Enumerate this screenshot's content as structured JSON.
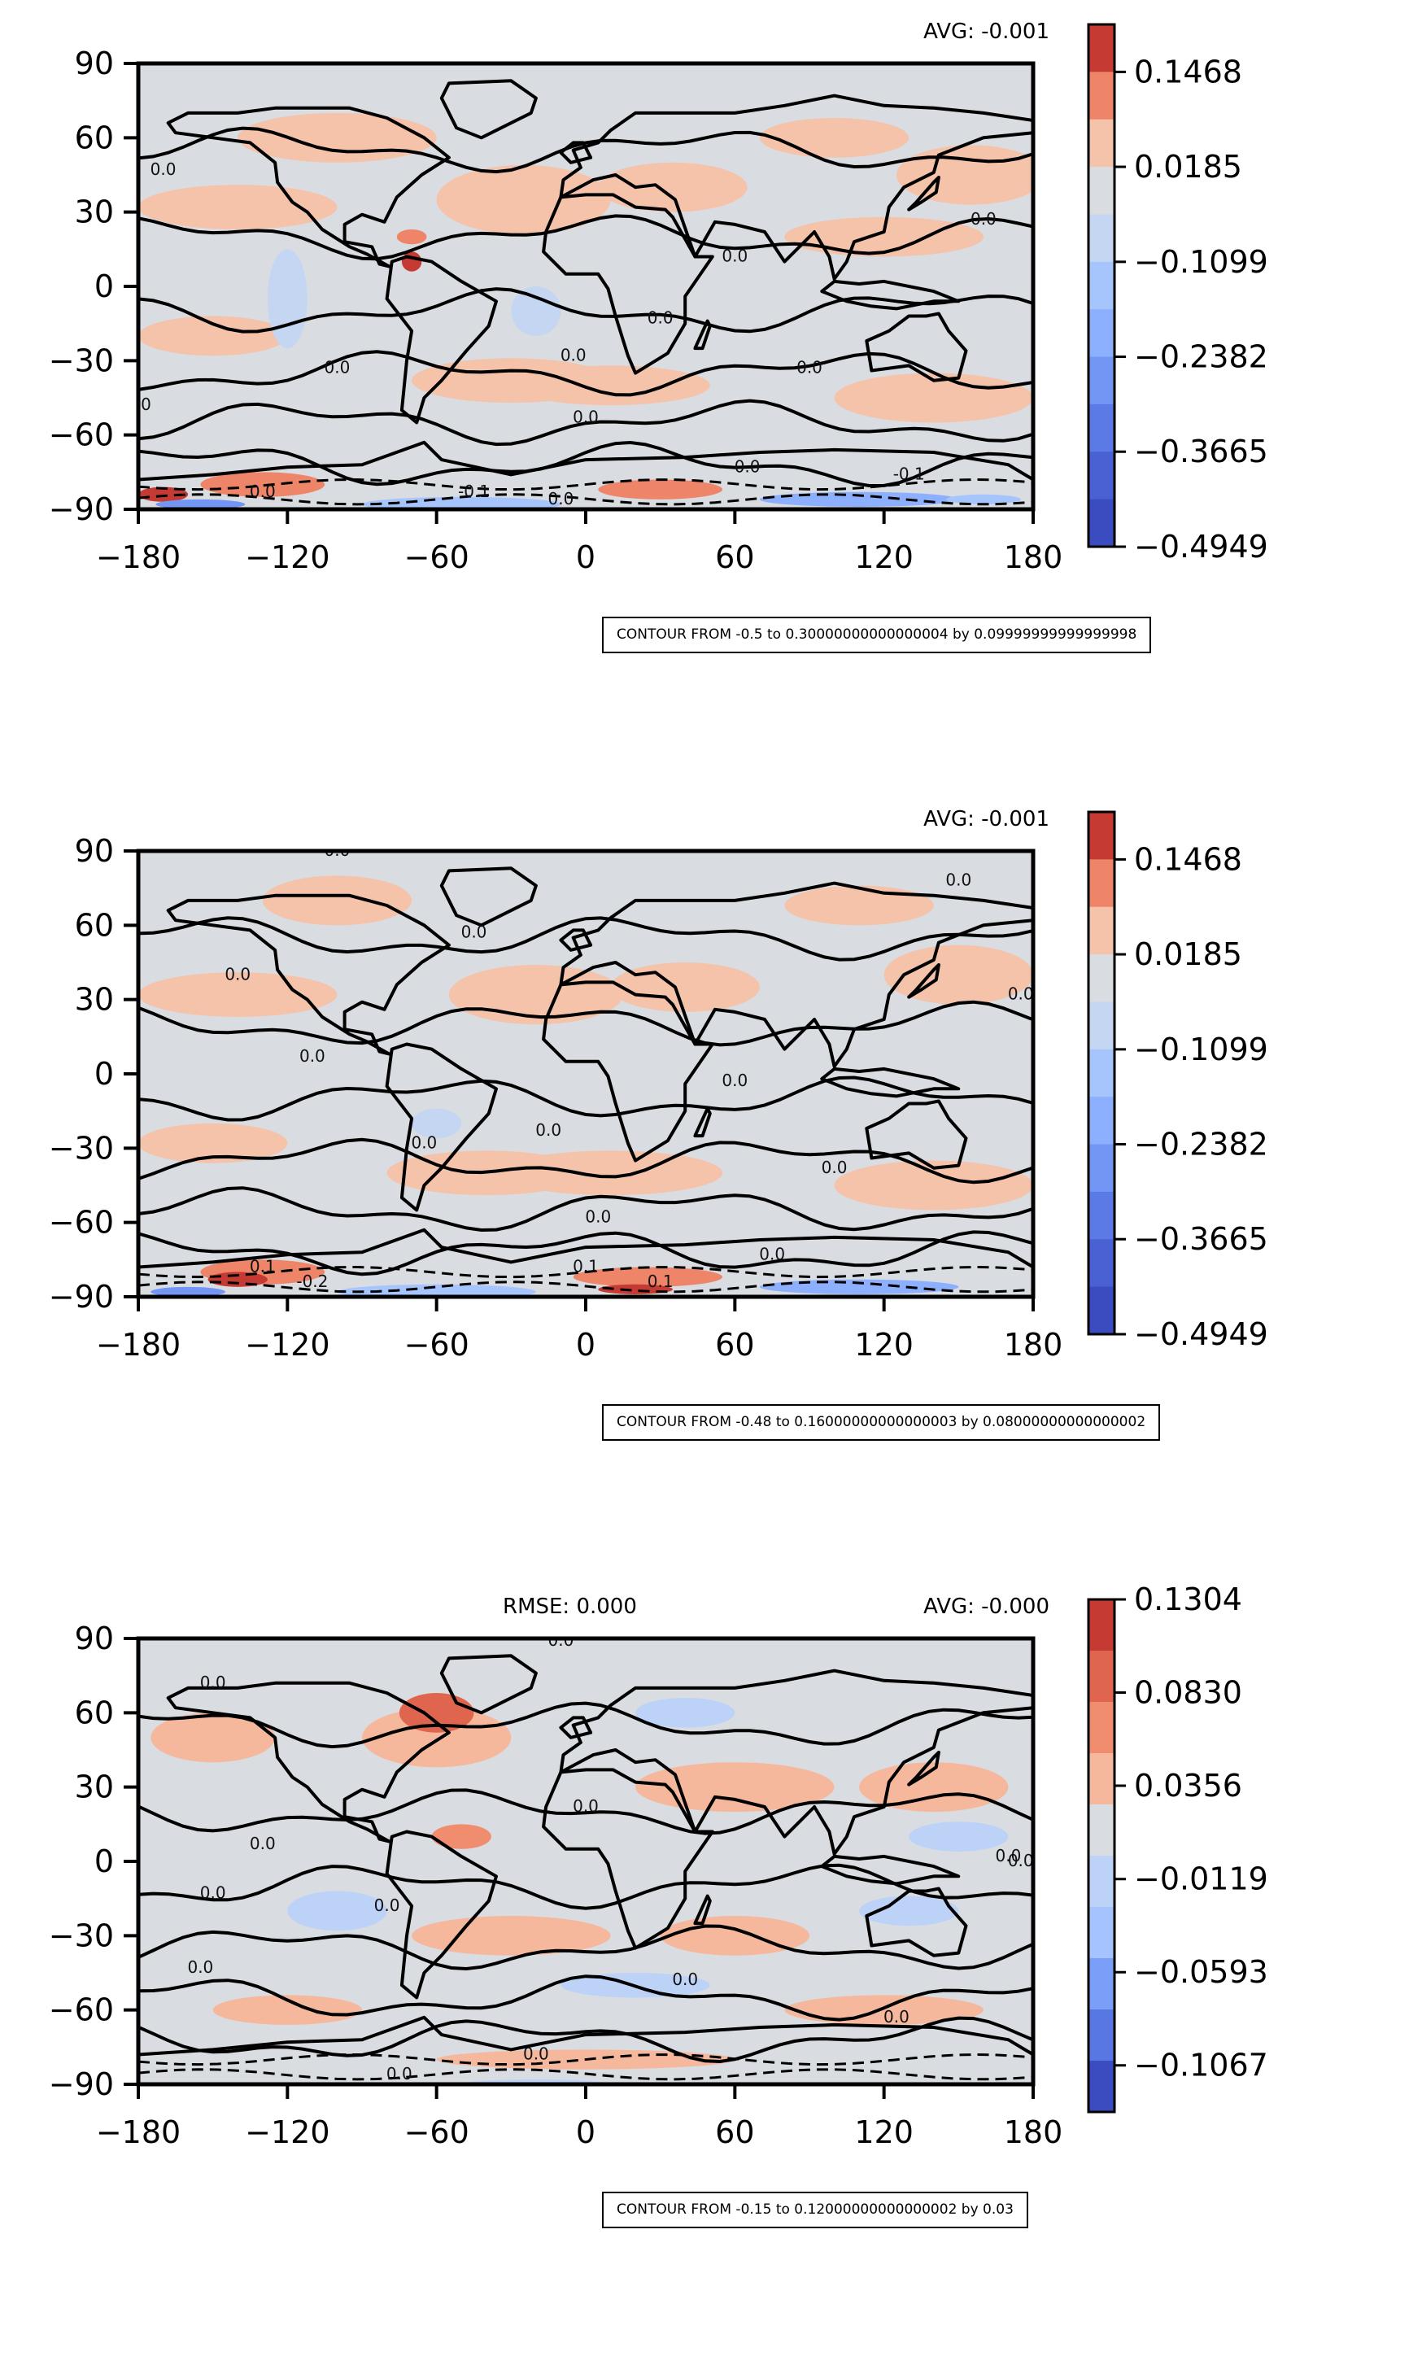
{
  "chart_data": [
    {
      "type": "heatmap",
      "title": "",
      "stats": {
        "avg": "AVG: -0.001",
        "rmse": ""
      },
      "xlabel": "",
      "ylabel": "",
      "xlim": [
        -180,
        180
      ],
      "ylim": [
        -90,
        90
      ],
      "x_ticks": [
        "−180",
        "−120",
        "−60",
        "0",
        "60",
        "120",
        "180"
      ],
      "y_ticks": [
        "90",
        "60",
        "30",
        "0",
        "−30",
        "−60",
        "−90"
      ],
      "colorbar": {
        "ticks": [
          "0.1468",
          "0.0185",
          "−0.1099",
          "−0.2382",
          "−0.3665",
          "−0.4949"
        ],
        "min": -0.4949,
        "max": 0.211,
        "colors": [
          "#c53a32",
          "#ee8468",
          "#f5c2aa",
          "#d9dce1",
          "#c5d6f2",
          "#a7c5fd",
          "#8caffe",
          "#7396f5",
          "#5b7ae5",
          "#4961d2",
          "#3b4cc0"
        ]
      },
      "contour_note": "CONTOUR FROM -0.5 to 0.30000000000000004 by 0.09999999999999998",
      "contour_labels": [
        "0.0",
        "-0.1"
      ]
    },
    {
      "type": "heatmap",
      "title": "",
      "stats": {
        "avg": "AVG: -0.001",
        "rmse": ""
      },
      "xlabel": "",
      "ylabel": "",
      "xlim": [
        -180,
        180
      ],
      "ylim": [
        -90,
        90
      ],
      "x_ticks": [
        "−180",
        "−120",
        "−60",
        "0",
        "60",
        "120",
        "180"
      ],
      "y_ticks": [
        "90",
        "60",
        "30",
        "0",
        "−30",
        "−60",
        "−90"
      ],
      "colorbar": {
        "ticks": [
          "0.1468",
          "0.0185",
          "−0.1099",
          "−0.2382",
          "−0.3665",
          "−0.4949"
        ],
        "min": -0.4949,
        "max": 0.211,
        "colors": [
          "#c53a32",
          "#ee8468",
          "#f5c2aa",
          "#d9dce1",
          "#c5d6f2",
          "#a7c5fd",
          "#8caffe",
          "#7396f5",
          "#5b7ae5",
          "#4961d2",
          "#3b4cc0"
        ]
      },
      "contour_note": "CONTOUR FROM -0.48 to 0.16000000000000003 by 0.08000000000000002",
      "contour_labels": [
        "0.0",
        "0.1",
        "-0.2"
      ]
    },
    {
      "type": "heatmap",
      "title": "",
      "stats": {
        "avg": "AVG: -0.000",
        "rmse": "RMSE: 0.000"
      },
      "xlabel": "",
      "ylabel": "",
      "xlim": [
        -180,
        180
      ],
      "ylim": [
        -90,
        90
      ],
      "x_ticks": [
        "−180",
        "−120",
        "−60",
        "0",
        "60",
        "120",
        "180"
      ],
      "y_ticks": [
        "90",
        "60",
        "30",
        "0",
        "−30",
        "−60",
        "−90"
      ],
      "colorbar": {
        "ticks": [
          "0.1304",
          "0.0830",
          "0.0356",
          "−0.0119",
          "−0.0593",
          "−0.1067"
        ],
        "min": -0.1304,
        "max": 0.1304,
        "colors": [
          "#c53a32",
          "#e0654f",
          "#f18d6f",
          "#f6b89c",
          "#d9dce1",
          "#bcd2f7",
          "#a5c3fe",
          "#7b9ff9",
          "#5977e3",
          "#3b4cc0"
        ]
      },
      "contour_note": "CONTOUR FROM -0.15 to 0.12000000000000002 by 0.03",
      "contour_labels": [
        "0.0"
      ]
    }
  ]
}
